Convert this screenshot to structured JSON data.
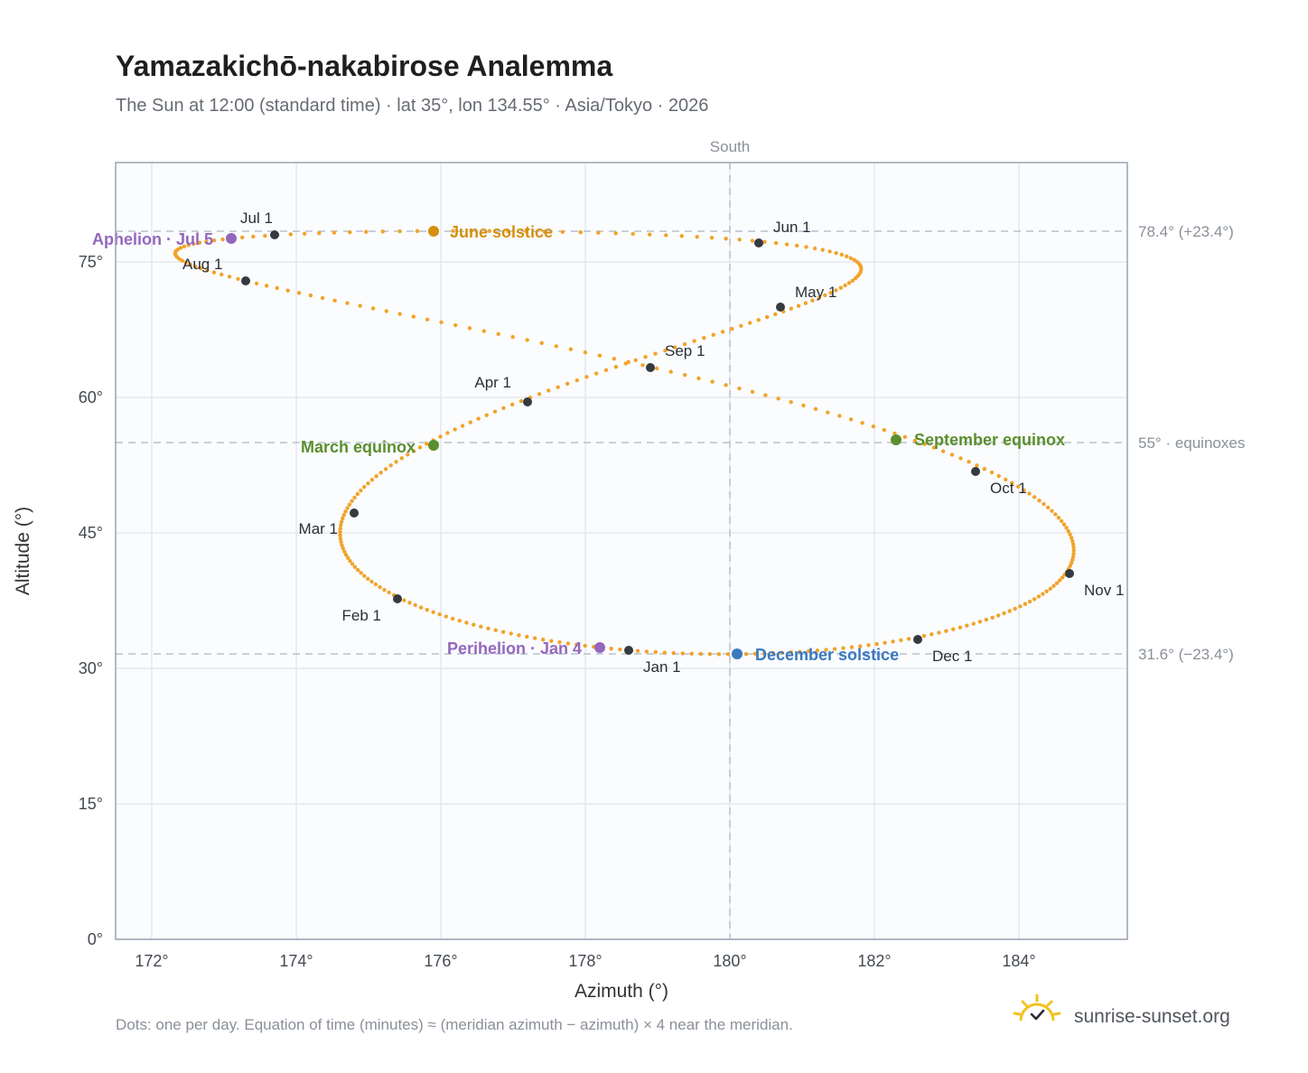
{
  "header": {
    "title": "Yamazakichō-nakabirose Analemma",
    "subtitle": "The Sun at 12:00 (standard time) · lat 35°, lon 134.55° · Asia/Tokyo · 2026"
  },
  "footer": {
    "note": "Dots: one per day. Equation of time (minutes) ≈ (meridian azimuth − azimuth) × 4 near the meridian.",
    "brand": "sunrise-sunset.org"
  },
  "colors": {
    "curve": "#f2a32a",
    "month_marker": "#343a40",
    "june_solstice": "#d4900e",
    "equinox": "#5a8f2e",
    "december_solstice": "#3a78c2",
    "apsis": "#9467bd",
    "plot_bg": "#fafcfe",
    "grid": "#e4e8ee",
    "frame": "#9aa3b0",
    "ref_line": "#b8c2cc"
  },
  "chart_data": {
    "type": "scatter",
    "xlabel": "Azimuth (°)",
    "ylabel": "Altitude (°)",
    "xlim": [
      171.5,
      185.5
    ],
    "ylim": [
      0,
      86
    ],
    "xticks": [
      172,
      174,
      176,
      178,
      180,
      182,
      184
    ],
    "xtick_labels": [
      "172°",
      "174°",
      "176°",
      "178°",
      "180°",
      "182°",
      "184°"
    ],
    "yticks": [
      0,
      15,
      30,
      45,
      60,
      75
    ],
    "ytick_labels": [
      "0°",
      "15°",
      "30°",
      "45°",
      "60°",
      "75°"
    ],
    "grid": true,
    "meridian": {
      "azimuth": 180,
      "label": "South"
    },
    "reference_lines": [
      {
        "altitude": 78.4,
        "label": "78.4° (+23.4°)"
      },
      {
        "altitude": 55,
        "label": "55° · equinoxes"
      },
      {
        "altitude": 31.6,
        "label": "31.6° (−23.4°)"
      }
    ],
    "latitude": 35,
    "longitude": 134.55,
    "utc_offset_hours": 9,
    "year": 2026,
    "month_markers": [
      {
        "label": "Jan 1",
        "az": 178.6,
        "alt": 32.0
      },
      {
        "label": "Feb 1",
        "az": 175.4,
        "alt": 37.7
      },
      {
        "label": "Mar 1",
        "az": 174.8,
        "alt": 47.2
      },
      {
        "label": "Apr 1",
        "az": 177.2,
        "alt": 59.5
      },
      {
        "label": "May 1",
        "az": 180.7,
        "alt": 70.0
      },
      {
        "label": "Jun 1",
        "az": 180.4,
        "alt": 77.1
      },
      {
        "label": "Jul 1",
        "az": 173.7,
        "alt": 78.0
      },
      {
        "label": "Aug 1",
        "az": 173.3,
        "alt": 72.9
      },
      {
        "label": "Sep 1",
        "az": 178.9,
        "alt": 63.3
      },
      {
        "label": "Oct 1",
        "az": 183.4,
        "alt": 51.8
      },
      {
        "label": "Nov 1",
        "az": 184.7,
        "alt": 40.5
      },
      {
        "label": "Dec 1",
        "az": 182.6,
        "alt": 33.2
      }
    ],
    "events": [
      {
        "label": "June solstice",
        "az": 175.9,
        "alt": 78.4,
        "color_key": "june_solstice"
      },
      {
        "label": "March equinox",
        "az": 175.9,
        "alt": 54.7,
        "color_key": "equinox"
      },
      {
        "label": "September equinox",
        "az": 182.3,
        "alt": 55.3,
        "color_key": "equinox"
      },
      {
        "label": "December solstice",
        "az": 180.1,
        "alt": 31.6,
        "color_key": "december_solstice"
      },
      {
        "label": "Aphelion · Jul 5",
        "az": 173.1,
        "alt": 77.6,
        "color_key": "apsis"
      },
      {
        "label": "Perihelion · Jan 4",
        "az": 178.2,
        "alt": 32.3,
        "color_key": "apsis"
      }
    ]
  }
}
